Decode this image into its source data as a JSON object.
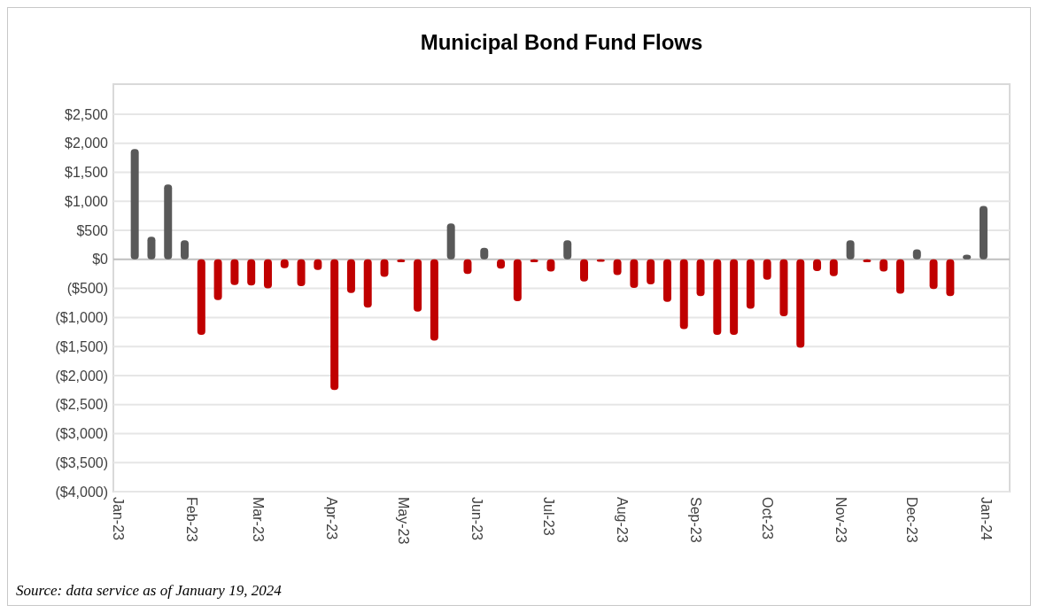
{
  "chart_data": {
    "type": "bar",
    "title": "Municipal Bond Fund Flows",
    "x": [
      "2023-01-08",
      "2023-01-15",
      "2023-01-22",
      "2023-01-29",
      "2023-02-05",
      "2023-02-12",
      "2023-02-19",
      "2023-02-26",
      "2023-03-05",
      "2023-03-12",
      "2023-03-19",
      "2023-03-26",
      "2023-04-02",
      "2023-04-09",
      "2023-04-16",
      "2023-04-23",
      "2023-04-30",
      "2023-05-07",
      "2023-05-14",
      "2023-05-21",
      "2023-05-28",
      "2023-06-04",
      "2023-06-11",
      "2023-06-18",
      "2023-06-25",
      "2023-07-02",
      "2023-07-09",
      "2023-07-16",
      "2023-07-23",
      "2023-07-30",
      "2023-08-06",
      "2023-08-13",
      "2023-08-20",
      "2023-08-27",
      "2023-09-03",
      "2023-09-10",
      "2023-09-17",
      "2023-09-24",
      "2023-10-01",
      "2023-10-08",
      "2023-10-15",
      "2023-10-22",
      "2023-10-29",
      "2023-11-05",
      "2023-11-12",
      "2023-11-19",
      "2023-11-26",
      "2023-12-03",
      "2023-12-10",
      "2023-12-17",
      "2023-12-24",
      "2023-12-31"
    ],
    "values": [
      1900,
      390,
      1290,
      330,
      -1300,
      -700,
      -440,
      -450,
      -500,
      -150,
      -460,
      -180,
      -2250,
      -580,
      -830,
      -300,
      -50,
      -900,
      -1400,
      620,
      -250,
      200,
      -160,
      -720,
      -50,
      -210,
      330,
      -380,
      -40,
      -270,
      -490,
      -430,
      -730,
      -1200,
      -630,
      -1300,
      -1300,
      -850,
      -350,
      -980,
      -1520,
      -200,
      -290,
      330,
      -50,
      -210,
      -590,
      175,
      -510,
      -630,
      80,
      920
    ],
    "colors": [
      "#595959",
      "#595959",
      "#595959",
      "#595959",
      "#c00000",
      "#c00000",
      "#c00000",
      "#c00000",
      "#c00000",
      "#c00000",
      "#c00000",
      "#c00000",
      "#c00000",
      "#c00000",
      "#c00000",
      "#c00000",
      "#c00000",
      "#c00000",
      "#c00000",
      "#595959",
      "#c00000",
      "#595959",
      "#c00000",
      "#c00000",
      "#c00000",
      "#c00000",
      "#595959",
      "#c00000",
      "#c00000",
      "#c00000",
      "#c00000",
      "#c00000",
      "#c00000",
      "#c00000",
      "#c00000",
      "#c00000",
      "#c00000",
      "#c00000",
      "#c00000",
      "#c00000",
      "#c00000",
      "#c00000",
      "#c00000",
      "#595959",
      "#c00000",
      "#c00000",
      "#c00000",
      "#595959",
      "#c00000",
      "#c00000",
      "#595959",
      "#595959"
    ],
    "xlim": [
      "2022-12-30",
      "2024-01-11"
    ],
    "xticks": [
      {
        "value": "2023-01-01",
        "label": "Jan-23"
      },
      {
        "value": "2023-02-01",
        "label": "Feb-23"
      },
      {
        "value": "2023-03-01",
        "label": "Mar-23"
      },
      {
        "value": "2023-04-01",
        "label": "Apr-23"
      },
      {
        "value": "2023-05-01",
        "label": "May-23"
      },
      {
        "value": "2023-06-01",
        "label": "Jun-23"
      },
      {
        "value": "2023-07-01",
        "label": "Jul-23"
      },
      {
        "value": "2023-08-01",
        "label": "Aug-23"
      },
      {
        "value": "2023-09-01",
        "label": "Sep-23"
      },
      {
        "value": "2023-10-01",
        "label": "Oct-23"
      },
      {
        "value": "2023-11-01",
        "label": "Nov-23"
      },
      {
        "value": "2023-12-01",
        "label": "Dec-23"
      },
      {
        "value": "2024-01-01",
        "label": "Jan-24"
      }
    ],
    "ylim": [
      -4000,
      2500
    ],
    "yticks": [
      {
        "value": 2500,
        "label": "$2,500"
      },
      {
        "value": 2000,
        "label": "$2,000"
      },
      {
        "value": 1500,
        "label": "$1,500"
      },
      {
        "value": 1000,
        "label": "$1,000"
      },
      {
        "value": 500,
        "label": "$500"
      },
      {
        "value": 0,
        "label": "$0"
      },
      {
        "value": -500,
        "label": "($500)"
      },
      {
        "value": -1000,
        "label": "($1,000)"
      },
      {
        "value": -1500,
        "label": "($1,500)"
      },
      {
        "value": -2000,
        "label": "($2,000)"
      },
      {
        "value": -2500,
        "label": "($2,500)"
      },
      {
        "value": -3000,
        "label": "($3,000)"
      },
      {
        "value": -3500,
        "label": "($3,500)"
      },
      {
        "value": -4000,
        "label": "($4,000)"
      }
    ],
    "grid": "y",
    "annotations": [
      "Source: data service as of January 19, 2024"
    ]
  }
}
